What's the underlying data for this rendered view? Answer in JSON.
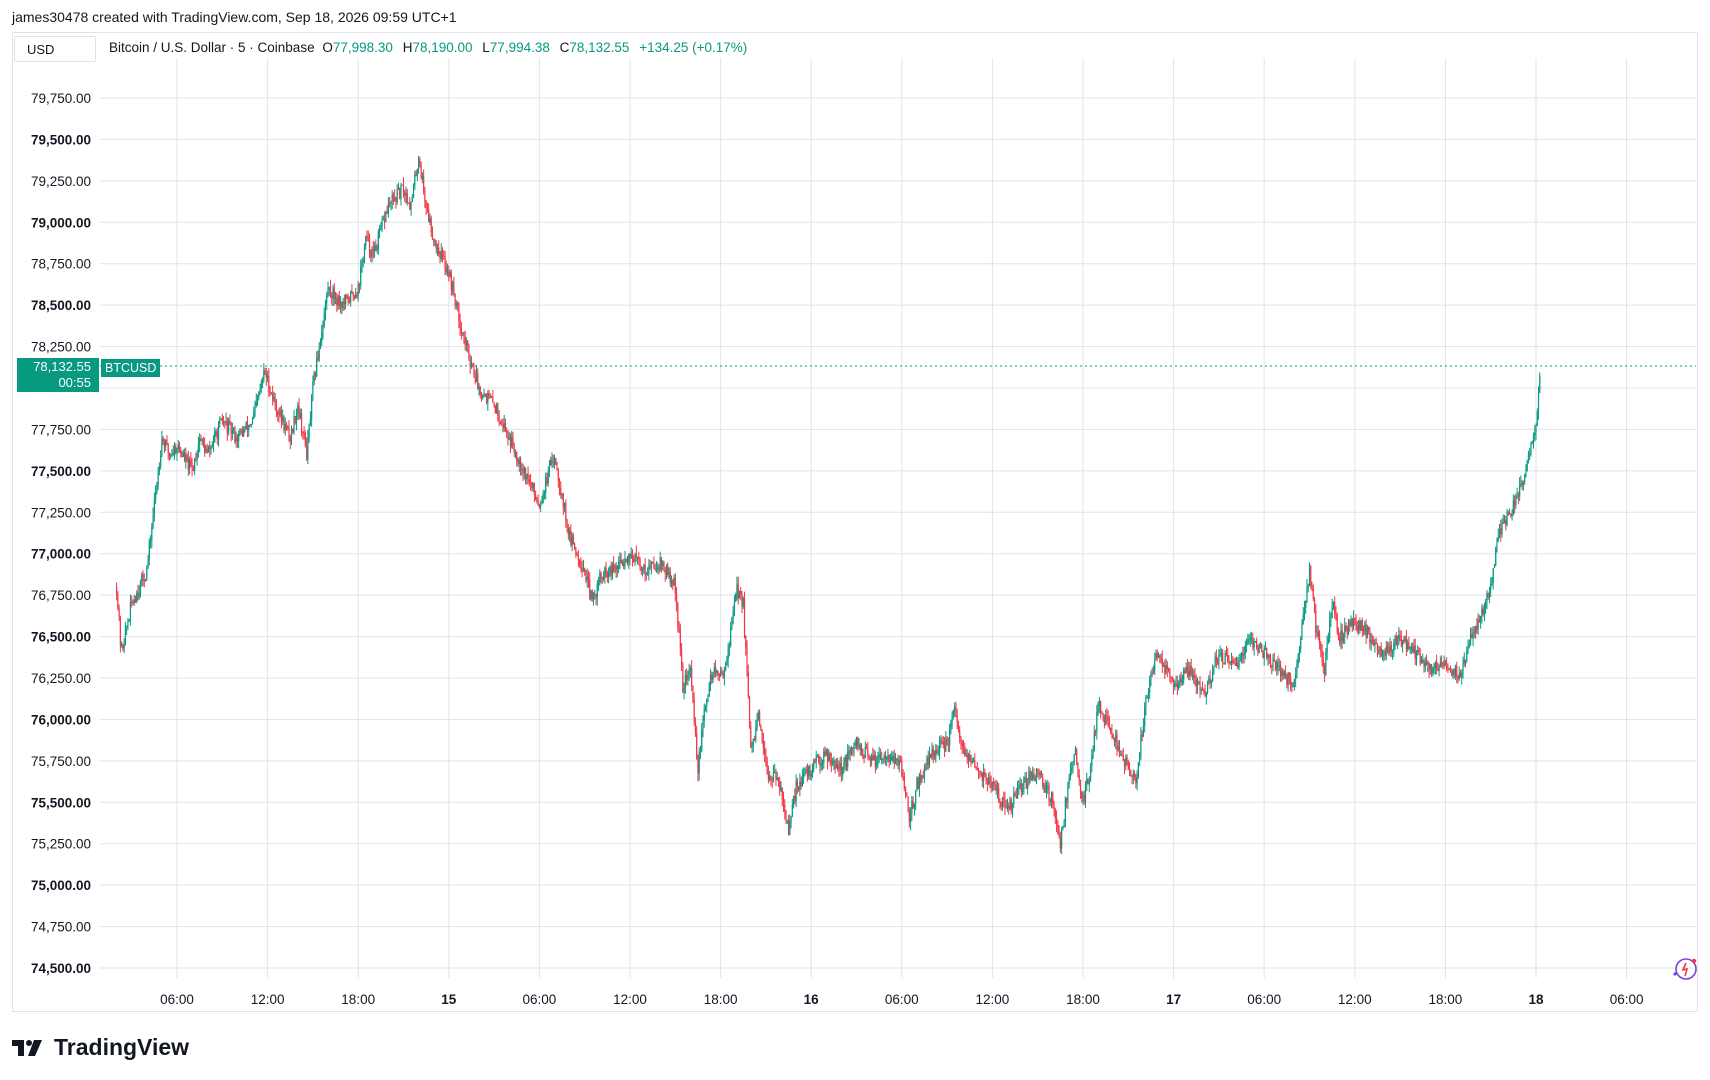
{
  "header": {
    "attribution": "james30478 created with TradingView.com, Sep 18, 2026 09:59 UTC+1"
  },
  "toolbar": {
    "currency": "USD"
  },
  "legend": {
    "symbol": "Bitcoin / U.S. Dollar · 5 · Coinbase",
    "o_label": "O",
    "o_value": "77,998.30",
    "h_label": "H",
    "h_value": "78,190.00",
    "l_label": "L",
    "l_value": "77,994.38",
    "c_label": "C",
    "c_value": "78,132.55",
    "change": "+134.25 (+0.17%)"
  },
  "badges": {
    "last_price": "78,132.55",
    "countdown": "00:55",
    "symbol": "BTCUSD"
  },
  "brand": {
    "name": "TradingView",
    "logo_icon": "tradingview-logo-icon"
  },
  "colors": {
    "up": "#089981",
    "down": "#f23645",
    "grid": "#e0e3eb",
    "accent": "#089981"
  },
  "chart_data": {
    "type": "candlestick",
    "interval": "5",
    "ylim": [
      74500,
      79850
    ],
    "y_ticks": [
      {
        "value": 74500,
        "label": "74,500.00",
        "bold": true
      },
      {
        "value": 74750,
        "label": "74,750.00",
        "bold": false
      },
      {
        "value": 75000,
        "label": "75,000.00",
        "bold": true
      },
      {
        "value": 75250,
        "label": "75,250.00",
        "bold": false
      },
      {
        "value": 75500,
        "label": "75,500.00",
        "bold": true
      },
      {
        "value": 75750,
        "label": "75,750.00",
        "bold": false
      },
      {
        "value": 76000,
        "label": "76,000.00",
        "bold": true
      },
      {
        "value": 76250,
        "label": "76,250.00",
        "bold": false
      },
      {
        "value": 76500,
        "label": "76,500.00",
        "bold": true
      },
      {
        "value": 76750,
        "label": "76,750.00",
        "bold": false
      },
      {
        "value": 77000,
        "label": "77,000.00",
        "bold": true
      },
      {
        "value": 77250,
        "label": "77,250.00",
        "bold": false
      },
      {
        "value": 77500,
        "label": "77,500.00",
        "bold": true
      },
      {
        "value": 77750,
        "label": "77,750.00",
        "bold": false
      },
      {
        "value": 78000,
        "label": "",
        "bold": false
      },
      {
        "value": 78250,
        "label": "78,250.00",
        "bold": false
      },
      {
        "value": 78500,
        "label": "78,500.00",
        "bold": true
      },
      {
        "value": 78750,
        "label": "78,750.00",
        "bold": false
      },
      {
        "value": 79000,
        "label": "79,000.00",
        "bold": true
      },
      {
        "value": 79250,
        "label": "79,250.00",
        "bold": false
      },
      {
        "value": 79500,
        "label": "79,500.00",
        "bold": true
      },
      {
        "value": 79750,
        "label": "79,750.00",
        "bold": false
      }
    ],
    "x_range_hours": [
      0,
      80.7
    ],
    "x_ticks": [
      {
        "hour": 4,
        "label": "06:00",
        "bold": false
      },
      {
        "hour": 10,
        "label": "12:00",
        "bold": false
      },
      {
        "hour": 16,
        "label": "18:00",
        "bold": false
      },
      {
        "hour": 22,
        "label": "15",
        "bold": true
      },
      {
        "hour": 28,
        "label": "06:00",
        "bold": false
      },
      {
        "hour": 34,
        "label": "12:00",
        "bold": false
      },
      {
        "hour": 40,
        "label": "18:00",
        "bold": false
      },
      {
        "hour": 46,
        "label": "16",
        "bold": true
      },
      {
        "hour": 52,
        "label": "06:00",
        "bold": false
      },
      {
        "hour": 58,
        "label": "12:00",
        "bold": false
      },
      {
        "hour": 64,
        "label": "18:00",
        "bold": false
      },
      {
        "hour": 70,
        "label": "17",
        "bold": true
      },
      {
        "hour": 76,
        "label": "06:00",
        "bold": false
      },
      {
        "hour": 82,
        "label": "12:00",
        "bold": false
      },
      {
        "hour": 88,
        "label": "18:00",
        "bold": false
      },
      {
        "hour": 94,
        "label": "18",
        "bold": true
      },
      {
        "hour": 100,
        "label": "06:00",
        "bold": false
      }
    ],
    "last_price": 78132.55,
    "price_path": [
      [
        0,
        76800
      ],
      [
        0.3,
        76400
      ],
      [
        1,
        76700
      ],
      [
        2,
        76900
      ],
      [
        2.5,
        77300
      ],
      [
        3,
        77700
      ],
      [
        3.5,
        77600
      ],
      [
        4,
        77650
      ],
      [
        5,
        77500
      ],
      [
        5.5,
        77700
      ],
      [
        6,
        77600
      ],
      [
        7,
        77800
      ],
      [
        8,
        77700
      ],
      [
        9,
        77800
      ],
      [
        9.8,
        78100
      ],
      [
        10.5,
        77900
      ],
      [
        11.5,
        77700
      ],
      [
        12,
        77900
      ],
      [
        12.6,
        77600
      ],
      [
        13,
        78000
      ],
      [
        13.5,
        78300
      ],
      [
        14,
        78600
      ],
      [
        15,
        78500
      ],
      [
        16,
        78600
      ],
      [
        16.5,
        78900
      ],
      [
        17,
        78800
      ],
      [
        18,
        79100
      ],
      [
        19,
        79200
      ],
      [
        19.5,
        79100
      ],
      [
        20,
        79400
      ],
      [
        20.5,
        79100
      ],
      [
        21,
        78900
      ],
      [
        22,
        78700
      ],
      [
        23,
        78300
      ],
      [
        24,
        78000
      ],
      [
        25,
        77900
      ],
      [
        26,
        77700
      ],
      [
        27,
        77500
      ],
      [
        28,
        77300
      ],
      [
        29,
        77600
      ],
      [
        30,
        77100
      ],
      [
        31,
        76900
      ],
      [
        31.5,
        76700
      ],
      [
        32,
        76850
      ],
      [
        33,
        76900
      ],
      [
        34,
        77000
      ],
      [
        35,
        76900
      ],
      [
        36,
        76950
      ],
      [
        37,
        76800
      ],
      [
        37.5,
        76200
      ],
      [
        38,
        76300
      ],
      [
        38.5,
        75700
      ],
      [
        39,
        76100
      ],
      [
        39.5,
        76300
      ],
      [
        40,
        76250
      ],
      [
        40.5,
        76400
      ],
      [
        41,
        76800
      ],
      [
        41.5,
        76700
      ],
      [
        42,
        75800
      ],
      [
        42.5,
        76000
      ],
      [
        43,
        75700
      ],
      [
        44,
        75600
      ],
      [
        44.5,
        75300
      ],
      [
        45,
        75600
      ],
      [
        46,
        75700
      ],
      [
        47,
        75800
      ],
      [
        48,
        75700
      ],
      [
        49,
        75850
      ],
      [
        50,
        75750
      ],
      [
        51,
        75800
      ],
      [
        52,
        75700
      ],
      [
        52.5,
        75400
      ],
      [
        53,
        75600
      ],
      [
        54,
        75800
      ],
      [
        55,
        75850
      ],
      [
        55.5,
        76050
      ],
      [
        56,
        75800
      ],
      [
        57,
        75700
      ],
      [
        58,
        75600
      ],
      [
        59,
        75450
      ],
      [
        60,
        75600
      ],
      [
        61,
        75700
      ],
      [
        62,
        75500
      ],
      [
        62.5,
        75250
      ],
      [
        63,
        75600
      ],
      [
        63.5,
        75800
      ],
      [
        64,
        75500
      ],
      [
        64.5,
        75700
      ],
      [
        65,
        76100
      ],
      [
        66,
        75900
      ],
      [
        67,
        75700
      ],
      [
        67.5,
        75600
      ],
      [
        68,
        76000
      ],
      [
        68.5,
        76300
      ],
      [
        69,
        76400
      ],
      [
        70,
        76200
      ],
      [
        71,
        76300
      ],
      [
        72,
        76150
      ],
      [
        73,
        76400
      ],
      [
        74,
        76300
      ],
      [
        75,
        76500
      ],
      [
        76,
        76400
      ],
      [
        77,
        76300
      ],
      [
        78,
        76200
      ],
      [
        79,
        76900
      ],
      [
        79.5,
        76500
      ],
      [
        80,
        76300
      ],
      [
        80.5,
        76700
      ],
      [
        81,
        76500
      ],
      [
        82,
        76600
      ],
      [
        83,
        76500
      ],
      [
        84,
        76400
      ],
      [
        85,
        76500
      ],
      [
        86,
        76400
      ],
      [
        87,
        76300
      ],
      [
        88,
        76350
      ],
      [
        89,
        76250
      ],
      [
        89.5,
        76450
      ],
      [
        90,
        76550
      ],
      [
        91,
        76800
      ],
      [
        91.5,
        77100
      ],
      [
        92,
        77200
      ],
      [
        93,
        77400
      ],
      [
        93.5,
        77600
      ],
      [
        94,
        77800
      ],
      [
        94.3,
        78132
      ]
    ]
  }
}
